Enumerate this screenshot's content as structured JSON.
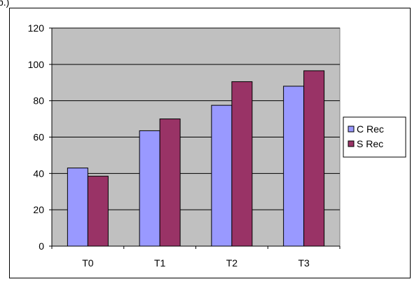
{
  "header_fragment": "p.)",
  "chart_data": {
    "type": "bar",
    "title": "",
    "xlabel": "",
    "ylabel": "",
    "categories": [
      "T0",
      "T1",
      "T2",
      "T3"
    ],
    "series": [
      {
        "name": "C Rec",
        "values": [
          43,
          63.5,
          77.5,
          88
        ],
        "color": "#9999ff"
      },
      {
        "name": "S Rec",
        "values": [
          38.5,
          70,
          90.5,
          96.5
        ],
        "color": "#993366"
      }
    ],
    "ylim": [
      0,
      120
    ],
    "yticks": [
      "0",
      "20",
      "40",
      "60",
      "80",
      "100",
      "120"
    ],
    "grid": true,
    "legend_position": "right",
    "plot_background": "#c0c0c0"
  }
}
